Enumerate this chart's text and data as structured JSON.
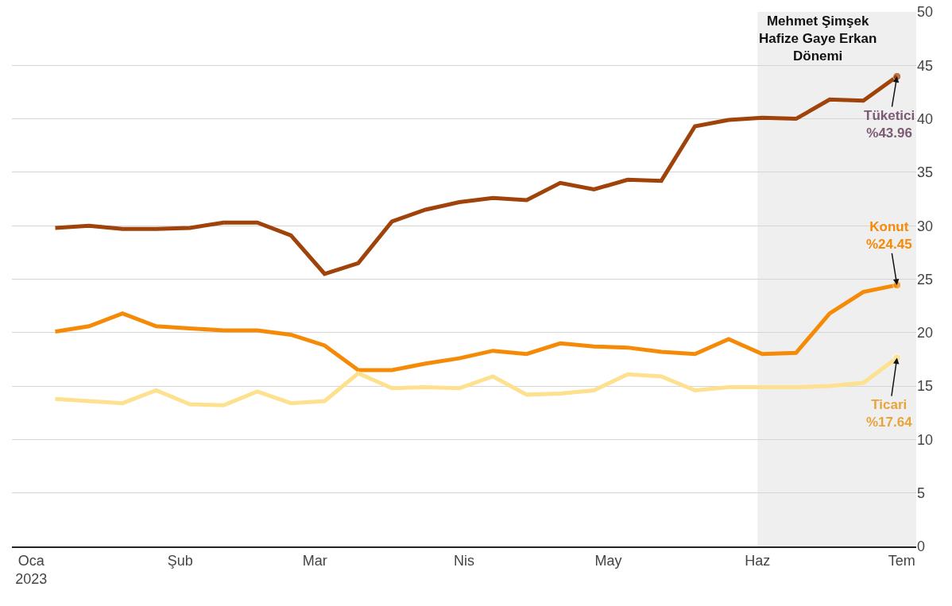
{
  "chart_data": {
    "type": "line",
    "x": [
      "2023-01-06",
      "2023-01-13",
      "2023-01-20",
      "2023-01-27",
      "2023-02-03",
      "2023-02-10",
      "2023-02-17",
      "2023-02-24",
      "2023-03-03",
      "2023-03-10",
      "2023-03-17",
      "2023-03-24",
      "2023-03-31",
      "2023-04-07",
      "2023-04-14",
      "2023-04-21",
      "2023-04-28",
      "2023-05-05",
      "2023-05-12",
      "2023-05-19",
      "2023-05-26",
      "2023-06-02",
      "2023-06-09",
      "2023-06-16",
      "2023-06-23",
      "2023-06-30"
    ],
    "series": [
      {
        "color": "#a0430a",
        "values": [
          29.8,
          30.0,
          29.7,
          29.7,
          29.8,
          30.3,
          30.3,
          29.1,
          25.5,
          26.5,
          30.4,
          31.5,
          32.2,
          32.6,
          32.4,
          34.0,
          33.4,
          34.3,
          34.2,
          39.3,
          39.9,
          40.1,
          40.0,
          41.8,
          41.7,
          43.96
        ]
      },
      {
        "color": "#f58a07",
        "values": [
          20.1,
          20.6,
          21.8,
          20.6,
          20.4,
          20.2,
          20.2,
          19.8,
          18.8,
          16.5,
          16.5,
          17.1,
          17.6,
          18.3,
          18.0,
          19.0,
          18.7,
          18.6,
          18.2,
          18.0,
          19.4,
          18.0,
          18.1,
          21.8,
          23.8,
          24.45
        ]
      },
      {
        "color": "#fde18f",
        "values": [
          13.8,
          13.6,
          13.4,
          14.6,
          13.3,
          13.2,
          14.5,
          13.4,
          13.6,
          16.2,
          14.8,
          14.9,
          14.8,
          15.9,
          14.2,
          14.3,
          14.6,
          16.1,
          15.9,
          14.6,
          14.9,
          14.9,
          14.9,
          15.0,
          15.3,
          17.64
        ]
      }
    ],
    "annotations": [
      {
        "text": "Tüketici\n%43.96",
        "x": "2023-06-30",
        "y": 43.96
      },
      {
        "text": "Konut\n%24.45",
        "x": "2023-06-30",
        "y": 24.45
      },
      {
        "text": "Ticari\n%17.64",
        "x": "2023-06-30",
        "y": 17.64
      }
    ],
    "bands": [
      {
        "axis": "x",
        "from": "2023-06-01",
        "to": "2023-07-04",
        "label": "Mehmet Şimşek\nHafize Gaye Erkan\nDönemi",
        "color": "#efefef"
      }
    ],
    "xlim": [
      "2022-12-28",
      "2023-07-04"
    ],
    "xticks": [
      {
        "value": "2023-01-01",
        "label": "Oca\n2023"
      },
      {
        "value": "2023-02-01",
        "label": "Şub"
      },
      {
        "value": "2023-03-01",
        "label": "Mar"
      },
      {
        "value": "2023-04-01",
        "label": "Nis"
      },
      {
        "value": "2023-05-01",
        "label": "May"
      },
      {
        "value": "2023-06-01",
        "label": "Haz"
      },
      {
        "value": "2023-07-01",
        "label": "Tem"
      }
    ],
    "ylim": [
      0,
      50
    ],
    "yticks": [
      0,
      5,
      10,
      15,
      20,
      25,
      30,
      35,
      40,
      45,
      50
    ],
    "grid": "y",
    "line_style": "solid"
  }
}
